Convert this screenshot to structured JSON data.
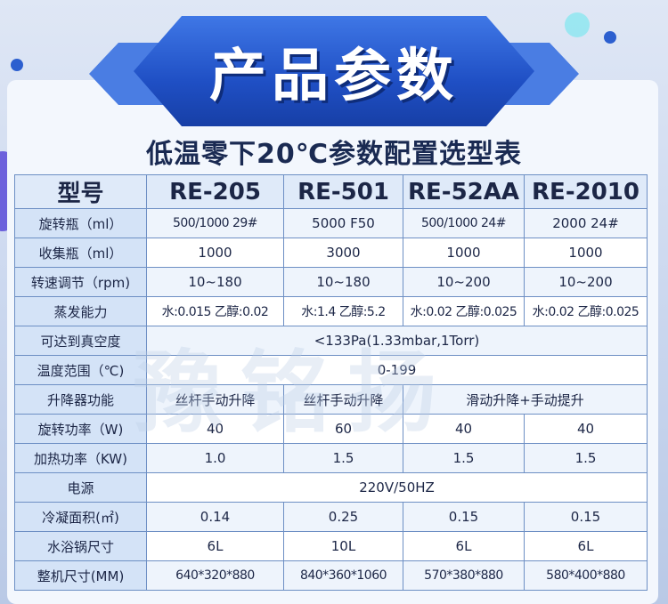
{
  "banner": {
    "title": "产品参数"
  },
  "subtitle": "低温零下20℃参数配置选型表",
  "watermark": "豫铭扬",
  "table": {
    "header": {
      "label": "型号",
      "models": [
        "RE-205",
        "RE-501",
        "RE-52AA",
        "RE-2010"
      ]
    },
    "rows": [
      {
        "label": "旋转瓶（ml）",
        "values": [
          "500/1000 29#",
          "5000 F50",
          "500/1000 24#",
          "2000 24#"
        ]
      },
      {
        "label": "收集瓶（ml）",
        "values": [
          "1000",
          "3000",
          "1000",
          "1000"
        ]
      },
      {
        "label": "转速调节（rpm)",
        "values": [
          "10~180",
          "10~180",
          "10~200",
          "10~200"
        ]
      },
      {
        "label": "蒸发能力",
        "values": [
          "水:0.015 乙醇:0.02",
          "水:1.4 乙醇:5.2",
          "水:0.02 乙醇:0.025",
          "水:0.02 乙醇:0.025"
        ]
      },
      {
        "label": "可达到真空度",
        "span": "<133Pa(1.33mbar,1Torr)"
      },
      {
        "label": "温度范围（℃)",
        "span": "0-199"
      },
      {
        "label": "升降器功能",
        "values": [
          "丝杆手动升降",
          "丝杆手动升降"
        ],
        "span2": "滑动升降+手动提升"
      },
      {
        "label": "旋转功率（W)",
        "values": [
          "40",
          "60",
          "40",
          "40"
        ]
      },
      {
        "label": "加热功率（KW)",
        "values": [
          "1.0",
          "1.5",
          "1.5",
          "1.5"
        ]
      },
      {
        "label": "电源",
        "span": "220V/50HZ"
      },
      {
        "label": "冷凝面积(㎡)",
        "values": [
          "0.14",
          "0.25",
          "0.15",
          "0.15"
        ]
      },
      {
        "label": "水浴锅尺寸",
        "values": [
          "6L",
          "10L",
          "6L",
          "6L"
        ]
      },
      {
        "label": "整机尺寸(MM)",
        "values": [
          "640*320*880",
          "840*360*1060",
          "570*380*880",
          "580*400*880"
        ]
      }
    ]
  }
}
